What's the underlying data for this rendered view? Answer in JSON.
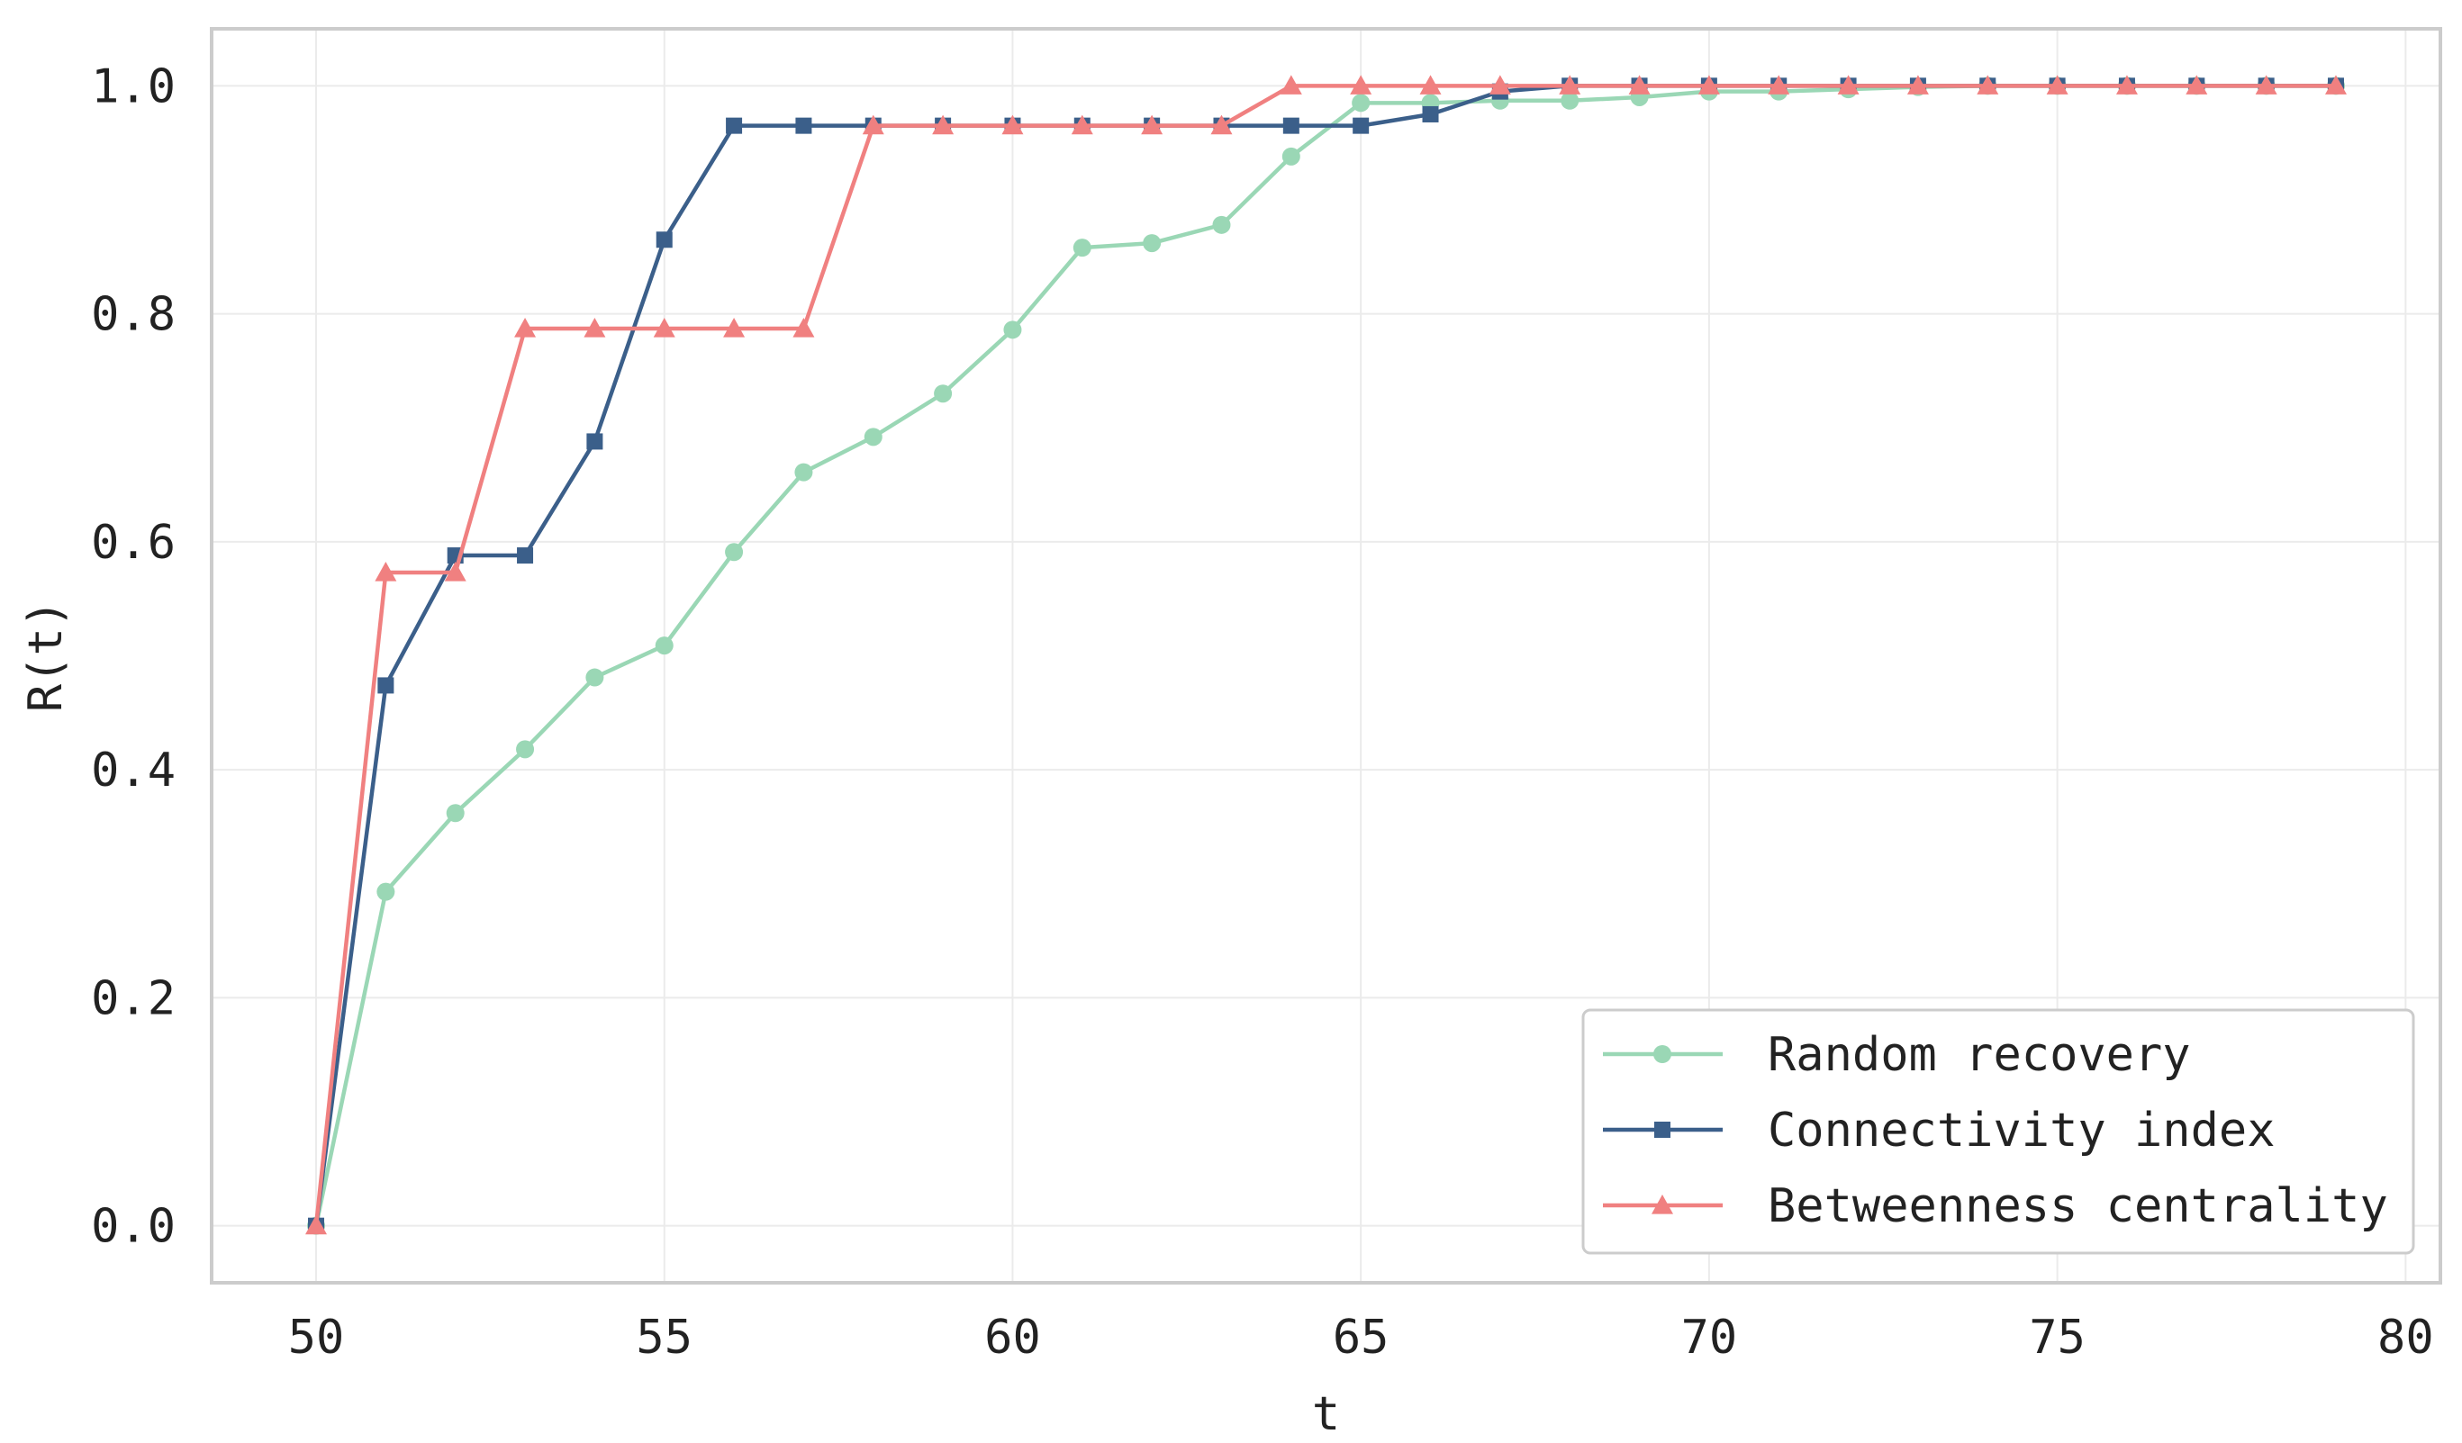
{
  "chart_data": {
    "type": "line",
    "title": "",
    "xlabel": "t",
    "ylabel": "R(t)",
    "xlim": [
      48.5,
      80.5
    ],
    "ylim": [
      -0.05,
      1.05
    ],
    "x_ticks": [
      50,
      55,
      60,
      65,
      70,
      75,
      80
    ],
    "x_tick_labels": [
      "50",
      "55",
      "60",
      "65",
      "70",
      "75",
      "80"
    ],
    "y_ticks": [
      0.0,
      0.2,
      0.4,
      0.6,
      0.8,
      1.0
    ],
    "y_tick_labels": [
      "0.0",
      "0.2",
      "0.4",
      "0.6",
      "0.8",
      "1.0"
    ],
    "grid": true,
    "legend_position": "bottom-right",
    "x": [
      50,
      51,
      52,
      53,
      54,
      55,
      56,
      57,
      58,
      59,
      60,
      61,
      62,
      63,
      64,
      65,
      66,
      67,
      68,
      69,
      70,
      71,
      72,
      73,
      74,
      75,
      76,
      77,
      78,
      79
    ],
    "series": [
      {
        "name": "Random recovery",
        "color": "#9ad7b5",
        "marker": "circle",
        "values": [
          0.0,
          0.293,
          0.362,
          0.418,
          0.481,
          0.509,
          0.591,
          0.661,
          0.692,
          0.73,
          0.786,
          0.858,
          0.862,
          0.878,
          0.938,
          0.985,
          0.985,
          0.987,
          0.987,
          0.99,
          0.995,
          0.995,
          0.997,
          0.999,
          1.0,
          1.0,
          1.0,
          1.0,
          1.0,
          1.0
        ]
      },
      {
        "name": "Connectivity index",
        "color": "#3b5f8a",
        "marker": "square",
        "values": [
          0.0,
          0.474,
          0.588,
          0.588,
          0.688,
          0.865,
          0.965,
          0.965,
          0.965,
          0.965,
          0.965,
          0.965,
          0.965,
          0.965,
          0.965,
          0.965,
          0.975,
          0.995,
          1.0,
          1.0,
          1.0,
          1.0,
          1.0,
          1.0,
          1.0,
          1.0,
          1.0,
          1.0,
          1.0,
          1.0
        ]
      },
      {
        "name": "Betweenness centrality",
        "color": "#f08080",
        "marker": "triangle",
        "values": [
          0.0,
          0.573,
          0.573,
          0.787,
          0.787,
          0.787,
          0.787,
          0.787,
          0.965,
          0.965,
          0.965,
          0.965,
          0.965,
          0.965,
          1.0,
          1.0,
          1.0,
          1.0,
          1.0,
          1.0,
          1.0,
          1.0,
          1.0,
          1.0,
          1.0,
          1.0,
          1.0,
          1.0,
          1.0,
          1.0
        ]
      }
    ]
  }
}
